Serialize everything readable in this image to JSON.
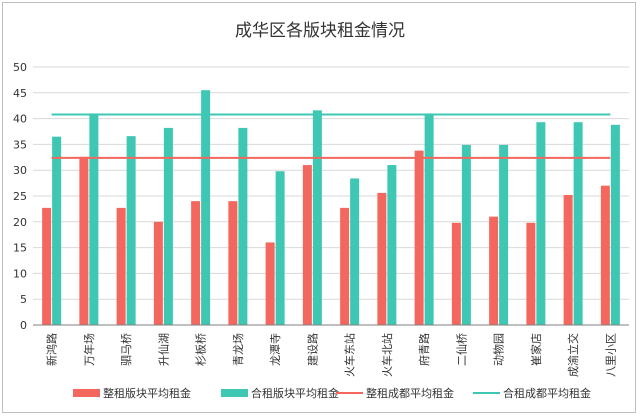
{
  "chart_data": {
    "type": "bar",
    "title": "成华区各版块租金情况",
    "xlabel": "",
    "ylabel": "",
    "ylim": [
      0,
      50
    ],
    "yticks": [
      0,
      5,
      10,
      15,
      20,
      25,
      30,
      35,
      40,
      45,
      50
    ],
    "grid": true,
    "legend_position": "bottom",
    "categories": [
      "新鸿路",
      "万年场",
      "驷马桥",
      "升仙湖",
      "杉板桥",
      "青龙场",
      "龙潭寺",
      "建设路",
      "火车东站",
      "火车北站",
      "府青路",
      "二仙桥",
      "动物园",
      "崔家店",
      "成渝立交",
      "八里小区"
    ],
    "series": [
      {
        "name": "整租版块平均租金",
        "kind": "bar",
        "color": "#f4675e",
        "values": [
          22.7,
          32.6,
          22.7,
          20.0,
          24.0,
          24.0,
          16.0,
          31.0,
          22.7,
          25.6,
          33.8,
          19.8,
          21.0,
          19.8,
          25.2,
          27.0
        ]
      },
      {
        "name": "合租版块平均租金",
        "kind": "bar",
        "color": "#3ec8b4",
        "values": [
          36.5,
          41.0,
          36.6,
          38.2,
          45.5,
          38.2,
          29.8,
          41.6,
          28.4,
          31.0,
          41.0,
          34.9,
          34.9,
          39.3,
          39.3,
          38.8
        ]
      },
      {
        "name": "整租成都平均租金",
        "kind": "line",
        "color": "#f4675e",
        "value": 32.4
      },
      {
        "name": "合租成都平均租金",
        "kind": "line",
        "color": "#3ec8b4",
        "value": 40.8
      }
    ]
  }
}
